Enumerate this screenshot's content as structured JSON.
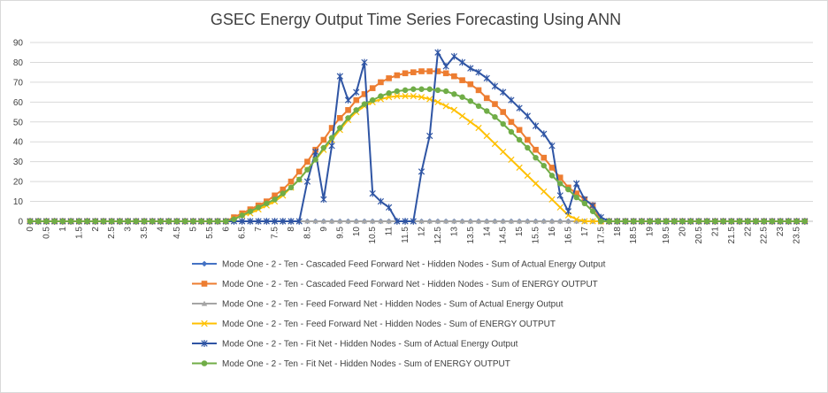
{
  "chart_data": {
    "type": "line",
    "title": "GSEC Energy Output Time Series Forecasting Using ANN",
    "xlabel": "",
    "ylabel": "",
    "ylim": [
      0,
      90
    ],
    "yticks": [
      0,
      10,
      20,
      30,
      40,
      50,
      60,
      70,
      80,
      90
    ],
    "grid": true,
    "legend_position": "bottom",
    "xtick_labels": [
      "0",
      "0.5",
      "1",
      "1.5",
      "2",
      "2.5",
      "3",
      "3.5",
      "4",
      "4.5",
      "5",
      "5.5",
      "6",
      "6.5",
      "7",
      "7.5",
      "8",
      "8.5",
      "9",
      "9.5",
      "10",
      "10.5",
      "11",
      "11.5",
      "12",
      "12.5",
      "13",
      "13.5",
      "14",
      "14.5",
      "15",
      "15.5",
      "16",
      "16.5",
      "17",
      "17.5",
      "18",
      "18.5",
      "19",
      "19.5",
      "20",
      "20.5",
      "21",
      "21.5",
      "22",
      "22.5",
      "23",
      "23.5"
    ],
    "x": [
      0,
      0.25,
      0.5,
      0.75,
      1,
      1.25,
      1.5,
      1.75,
      2,
      2.25,
      2.5,
      2.75,
      3,
      3.25,
      3.5,
      3.75,
      4,
      4.25,
      4.5,
      4.75,
      5,
      5.25,
      5.5,
      5.75,
      6,
      6.25,
      6.5,
      6.75,
      7,
      7.25,
      7.5,
      7.75,
      8,
      8.25,
      8.5,
      8.75,
      9,
      9.25,
      9.5,
      9.75,
      10,
      10.25,
      10.5,
      10.75,
      11,
      11.25,
      11.5,
      11.75,
      12,
      12.25,
      12.5,
      12.75,
      13,
      13.25,
      13.5,
      13.75,
      14,
      14.25,
      14.5,
      14.75,
      15,
      15.25,
      15.5,
      15.75,
      16,
      16.25,
      16.5,
      16.75,
      17,
      17.25,
      17.5,
      17.75,
      18,
      18.25,
      18.5,
      18.75,
      19,
      19.25,
      19.5,
      19.75,
      20,
      20.25,
      20.5,
      20.75,
      21,
      21.25,
      21.5,
      21.75,
      22,
      22.25,
      22.5,
      22.75,
      23,
      23.25,
      23.5,
      23.75
    ],
    "series": [
      {
        "name": "Mode One - 2 - Ten - Cascaded Feed Forward Net - Hidden Nodes - Sum of Actual Energy Output",
        "color": "#4472C4",
        "marker": "diamond",
        "values": [
          0,
          0,
          0,
          0,
          0,
          0,
          0,
          0,
          0,
          0,
          0,
          0,
          0,
          0,
          0,
          0,
          0,
          0,
          0,
          0,
          0,
          0,
          0,
          0,
          0,
          0,
          0,
          0,
          0,
          0,
          0,
          0,
          0,
          0,
          0,
          0,
          0,
          0,
          0,
          0,
          0,
          0,
          0,
          0,
          0,
          0,
          0,
          0,
          0,
          0,
          0,
          0,
          0,
          0,
          0,
          0,
          0,
          0,
          0,
          0,
          0,
          0,
          0,
          0,
          0,
          0,
          0,
          0,
          0,
          0,
          0,
          0,
          0,
          0,
          0,
          0,
          0,
          0,
          0,
          0,
          0,
          0,
          0,
          0,
          0,
          0,
          0,
          0,
          0,
          0,
          0,
          0,
          0,
          0,
          0,
          0
        ]
      },
      {
        "name": "Mode One - 2 - Ten - Cascaded Feed Forward Net - Hidden Nodes - Sum of ENERGY OUTPUT",
        "color": "#ED7D31",
        "marker": "square",
        "values": [
          0,
          0,
          0,
          0,
          0,
          0,
          0,
          0,
          0,
          0,
          0,
          0,
          0,
          0,
          0,
          0,
          0,
          0,
          0,
          0,
          0,
          0,
          0,
          0,
          0,
          2,
          4,
          6,
          8,
          10,
          13,
          16,
          20,
          25,
          30,
          36,
          41,
          47,
          52,
          56,
          61,
          64,
          67,
          70,
          72,
          73.5,
          74.5,
          75,
          75.5,
          75.5,
          75.5,
          74.5,
          73,
          71,
          69,
          66,
          62,
          59,
          55,
          50,
          46,
          41,
          36,
          32,
          27,
          22,
          17,
          14,
          11,
          8,
          0,
          0,
          0,
          0,
          0,
          0,
          0,
          0,
          0,
          0,
          0,
          0,
          0,
          0,
          0,
          0,
          0,
          0,
          0,
          0,
          0,
          0,
          0,
          0,
          0,
          0
        ]
      },
      {
        "name": "Mode One - 2 - Ten - Feed Forward Net - Hidden Nodes - Sum of Actual Energy Output",
        "color": "#A5A5A5",
        "marker": "triangle",
        "values": [
          0,
          0,
          0,
          0,
          0,
          0,
          0,
          0,
          0,
          0,
          0,
          0,
          0,
          0,
          0,
          0,
          0,
          0,
          0,
          0,
          0,
          0,
          0,
          0,
          0,
          0,
          0,
          0,
          0,
          0,
          0,
          0,
          0,
          0,
          0,
          0,
          0,
          0,
          0,
          0,
          0,
          0,
          0,
          0,
          0,
          0,
          0,
          0,
          0,
          0,
          0,
          0,
          0,
          0,
          0,
          0,
          0,
          0,
          0,
          0,
          0,
          0,
          0,
          0,
          0,
          0,
          0,
          0,
          0,
          0,
          0,
          0,
          0,
          0,
          0,
          0,
          0,
          0,
          0,
          0,
          0,
          0,
          0,
          0,
          0,
          0,
          0,
          0,
          0,
          0,
          0,
          0,
          0,
          0,
          0,
          0
        ]
      },
      {
        "name": "Mode One - 2 - Ten - Feed Forward Net - Hidden Nodes - Sum of ENERGY OUTPUT",
        "color": "#FFC000",
        "marker": "x",
        "values": [
          0,
          0,
          0,
          0,
          0,
          0,
          0,
          0,
          0,
          0,
          0,
          0,
          0,
          0,
          0,
          0,
          0,
          0,
          0,
          0,
          0,
          0,
          0,
          0,
          0,
          1,
          3,
          4,
          6,
          8,
          10,
          13,
          17,
          21,
          26,
          31,
          36,
          41,
          46,
          51,
          55,
          58,
          60,
          61.5,
          62.5,
          63,
          63,
          63,
          62.5,
          61.5,
          60,
          58,
          56,
          53,
          50,
          47,
          43,
          39,
          35,
          31,
          27,
          23,
          19,
          15,
          11,
          7,
          3,
          1,
          0,
          0,
          0,
          0,
          0,
          0,
          0,
          0,
          0,
          0,
          0,
          0,
          0,
          0,
          0,
          0,
          0,
          0,
          0,
          0,
          0,
          0,
          0,
          0,
          0,
          0,
          0,
          0
        ]
      },
      {
        "name": "Mode One - 2 - Ten - Fit Net - Hidden Nodes - Sum of Actual Energy Output",
        "color": "#2F55A4",
        "marker": "star",
        "values": [
          0,
          0,
          0,
          0,
          0,
          0,
          0,
          0,
          0,
          0,
          0,
          0,
          0,
          0,
          0,
          0,
          0,
          0,
          0,
          0,
          0,
          0,
          0,
          0,
          0,
          0,
          0,
          0,
          0,
          0,
          0,
          0,
          0,
          0,
          20,
          35,
          11,
          38,
          73,
          61,
          65,
          80,
          14,
          10,
          7,
          0,
          0,
          0,
          25,
          43,
          85,
          78,
          83,
          80,
          77,
          75,
          72,
          68,
          65,
          61,
          57,
          53,
          48,
          44,
          38,
          13,
          5,
          19,
          11,
          8,
          2,
          0,
          0,
          0,
          0,
          0,
          0,
          0,
          0,
          0,
          0,
          0,
          0,
          0,
          0,
          0,
          0,
          0,
          0,
          0,
          0,
          0,
          0,
          0,
          0,
          0
        ]
      },
      {
        "name": "Mode One - 2 - Ten - Fit Net - Hidden Nodes - Sum of ENERGY OUTPUT",
        "color": "#70AD47",
        "marker": "circle",
        "values": [
          0,
          0,
          0,
          0,
          0,
          0,
          0,
          0,
          0,
          0,
          0,
          0,
          0,
          0,
          0,
          0,
          0,
          0,
          0,
          0,
          0,
          0,
          0,
          0,
          0,
          1,
          3,
          5,
          7,
          9,
          11,
          14,
          17,
          21,
          26,
          31,
          37,
          42,
          47,
          52,
          56,
          59,
          61,
          63,
          64.5,
          65.5,
          66,
          66.5,
          66.5,
          66.5,
          66,
          65.5,
          64,
          62.5,
          60.5,
          58,
          55.5,
          52.5,
          49,
          45,
          41,
          37,
          32,
          28,
          23,
          19,
          16,
          12,
          9,
          5,
          0,
          0,
          0,
          0,
          0,
          0,
          0,
          0,
          0,
          0,
          0,
          0,
          0,
          0,
          0,
          0,
          0,
          0,
          0,
          0,
          0,
          0,
          0,
          0,
          0,
          0
        ]
      }
    ]
  }
}
